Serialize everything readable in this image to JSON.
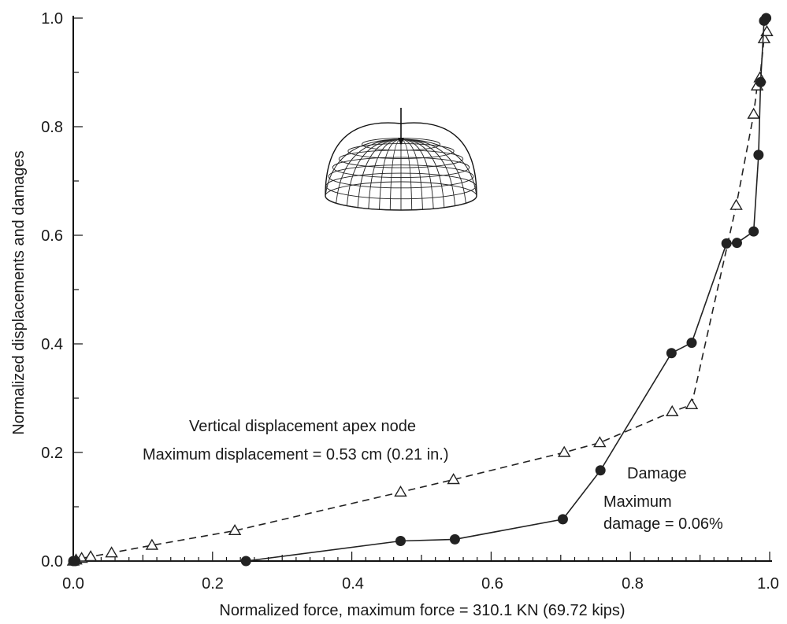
{
  "chart_data": {
    "type": "line",
    "xlabel": "Normalized force, maximum force = 310.1 KN (69.72 kips)",
    "ylabel": "Normalized displacements and damages",
    "xlim": [
      0.0,
      1.0
    ],
    "ylim": [
      0.0,
      1.0
    ],
    "x_ticks": [
      "0.0",
      "0.2",
      "0.4",
      "0.6",
      "0.8",
      "1.0"
    ],
    "y_ticks": [
      "0.0",
      "0.2",
      "0.4",
      "0.6",
      "0.8",
      "1.0"
    ],
    "grid": false,
    "legend": "none",
    "series": [
      {
        "marker": "open-triangle",
        "line_style": "dashed",
        "color": "#222222",
        "points": [
          [
            0.0,
            0.0
          ],
          [
            0.004,
            0.002
          ],
          [
            0.012,
            0.005
          ],
          [
            0.025,
            0.008
          ],
          [
            0.055,
            0.015
          ],
          [
            0.113,
            0.029
          ],
          [
            0.232,
            0.056
          ],
          [
            0.47,
            0.127
          ],
          [
            0.546,
            0.15
          ],
          [
            0.705,
            0.2
          ],
          [
            0.756,
            0.218
          ],
          [
            0.86,
            0.275
          ],
          [
            0.888,
            0.288
          ],
          [
            0.952,
            0.655
          ],
          [
            0.977,
            0.823
          ],
          [
            0.982,
            0.875
          ],
          [
            0.986,
            0.89
          ],
          [
            0.992,
            0.962
          ],
          [
            0.996,
            0.975
          ]
        ]
      },
      {
        "marker": "filled-circle",
        "line_style": "solid",
        "color": "#222222",
        "points": [
          [
            0.0,
            0.0
          ],
          [
            0.003,
            0.0
          ],
          [
            0.248,
            0.0
          ],
          [
            0.47,
            0.037
          ],
          [
            0.548,
            0.04
          ],
          [
            0.703,
            0.077
          ],
          [
            0.757,
            0.167
          ],
          [
            0.859,
            0.383
          ],
          [
            0.888,
            0.402
          ],
          [
            0.938,
            0.585
          ],
          [
            0.953,
            0.586
          ],
          [
            0.977,
            0.607
          ],
          [
            0.984,
            0.748
          ],
          [
            0.987,
            0.882
          ],
          [
            0.992,
            0.995
          ],
          [
            0.995,
            1.0
          ]
        ]
      }
    ],
    "annotations": {
      "displacement_title": "Vertical displacement apex node",
      "displacement_max": "Maximum displacement = 0.53 cm (0.21 in.)",
      "damage_title": "Damage",
      "damage_max_line1": "Maximum",
      "damage_max_line2": "damage = 0.06%"
    }
  }
}
